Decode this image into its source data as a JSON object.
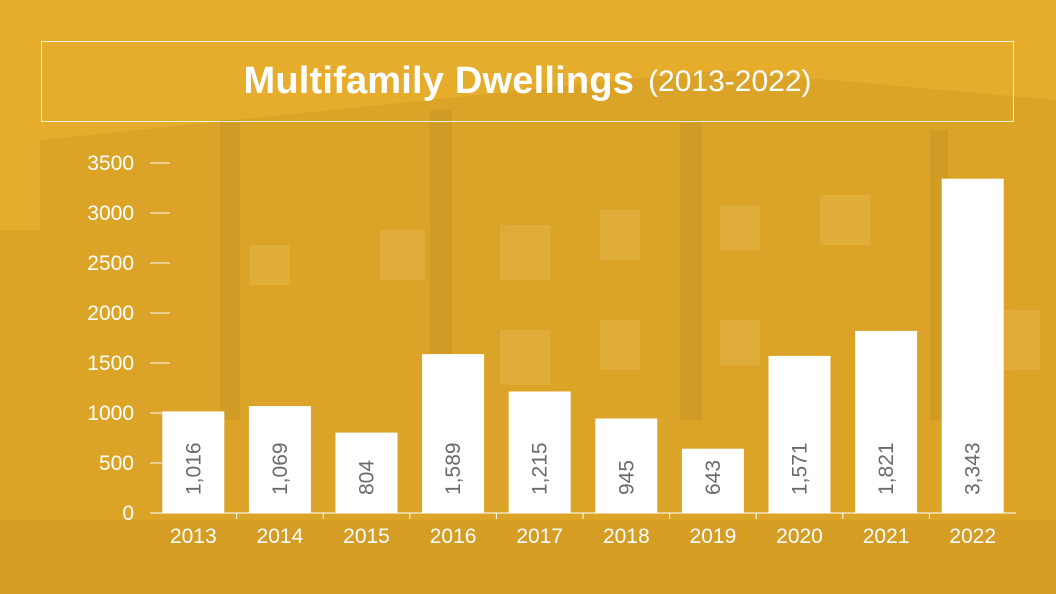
{
  "title": {
    "main": "Multifamily Dwellings",
    "range": "(2013-2022)"
  },
  "colors": {
    "background": "#e6ad2c",
    "bar": "#ffffff",
    "axis_text": "#ffffff",
    "value_text": "#6a6a6a"
  },
  "chart_data": {
    "type": "bar",
    "categories": [
      "2013",
      "2014",
      "2015",
      "2016",
      "2017",
      "2018",
      "2019",
      "2020",
      "2021",
      "2022"
    ],
    "values": [
      1016,
      1069,
      804,
      1589,
      1215,
      945,
      643,
      1571,
      1821,
      3343
    ],
    "value_labels": [
      "1,016",
      "1,069",
      "804",
      "1,589",
      "1,215",
      "945",
      "643",
      "1,571",
      "1,821",
      "3,343"
    ],
    "title": "Multifamily Dwellings (2013-2022)",
    "xlabel": "",
    "ylabel": "",
    "ylim": [
      0,
      3500
    ],
    "yticks": [
      0,
      500,
      1000,
      1500,
      2000,
      2500,
      3000,
      3500
    ],
    "grid": false,
    "legend": "none",
    "value_label_orientation": "vertical"
  }
}
